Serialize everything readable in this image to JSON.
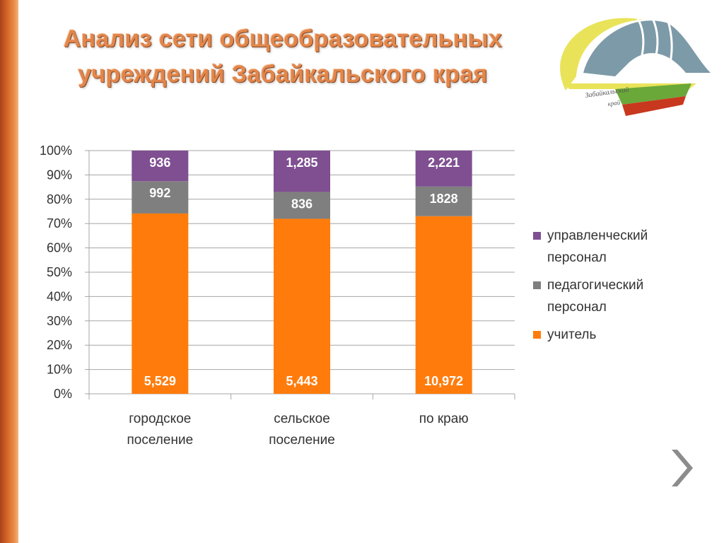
{
  "slide": {
    "title_lines": [
      "Анализ сети общеобразовательных",
      "учреждений Забайкальского края"
    ]
  },
  "logo": {
    "text_line1": "Забайкальский",
    "text_line2": "край"
  },
  "chart_data": {
    "type": "bar",
    "stacked": "percent",
    "categories": [
      [
        "городское",
        "поселение"
      ],
      [
        "сельское",
        "поселение"
      ],
      [
        "по краю"
      ]
    ],
    "series": [
      {
        "name": "учитель",
        "values": [
          5529,
          5443,
          10972
        ],
        "labels": [
          "5,529",
          "5,443",
          "10,972"
        ],
        "color": "#ff7c0c"
      },
      {
        "name": "педагогический персонал",
        "legend_lines": [
          "педагогический",
          "персонал"
        ],
        "values": [
          992,
          836,
          1828
        ],
        "labels": [
          "992",
          "836",
          "1828"
        ],
        "color": "#7f7f7f"
      },
      {
        "name": "управленческий персонал",
        "legend_lines": [
          "управленческий",
          "персонал"
        ],
        "values": [
          936,
          1285,
          2221
        ],
        "labels": [
          "936",
          "1,285",
          "2,221"
        ],
        "color": "#7f4f91"
      }
    ],
    "yticks": [
      "0%",
      "10%",
      "20%",
      "30%",
      "40%",
      "50%",
      "60%",
      "70%",
      "80%",
      "90%",
      "100%"
    ],
    "ylim": [
      0,
      100
    ],
    "grid": true,
    "legend_position": "right"
  },
  "legend_order": [
    2,
    1,
    0
  ],
  "colors": {
    "title": "#e2864c",
    "accent_bar": "#d8662a",
    "grid": "#a6a6a6",
    "axis_text": "#333333"
  },
  "nav": {
    "next_icon": "chevron-right-icon"
  }
}
